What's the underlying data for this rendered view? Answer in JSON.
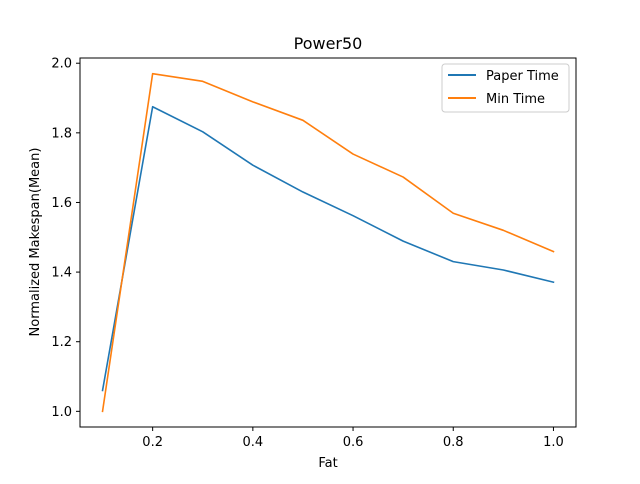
{
  "chart_data": {
    "type": "line",
    "title": "Power50",
    "xlabel": "Fat",
    "ylabel": "Normalized Makespan(Mean)",
    "xlim": [
      0.055,
      1.045
    ],
    "ylim": [
      0.955,
      2.015
    ],
    "xticks": [
      0.2,
      0.4,
      0.6,
      0.8,
      1.0
    ],
    "xtick_labels": [
      "0.2",
      "0.4",
      "0.6",
      "0.8",
      "1.0"
    ],
    "yticks": [
      1.0,
      1.2,
      1.4,
      1.6,
      1.8,
      2.0
    ],
    "ytick_labels": [
      "1.0",
      "1.2",
      "1.4",
      "1.6",
      "1.8",
      "2.0"
    ],
    "grid": false,
    "legend_position": "top-right",
    "x": [
      0.1,
      0.2,
      0.3,
      0.4,
      0.5,
      0.6,
      0.7,
      0.8,
      0.9,
      1.0
    ],
    "series": [
      {
        "name": "Paper Time",
        "color": "#1f77b4",
        "values": [
          1.06,
          1.875,
          1.803,
          1.707,
          1.63,
          1.562,
          1.489,
          1.43,
          1.406,
          1.371
        ]
      },
      {
        "name": "Min Time",
        "color": "#ff7f0e",
        "values": [
          1.0,
          1.97,
          1.948,
          1.889,
          1.836,
          1.739,
          1.673,
          1.569,
          1.52,
          1.459
        ]
      }
    ]
  }
}
